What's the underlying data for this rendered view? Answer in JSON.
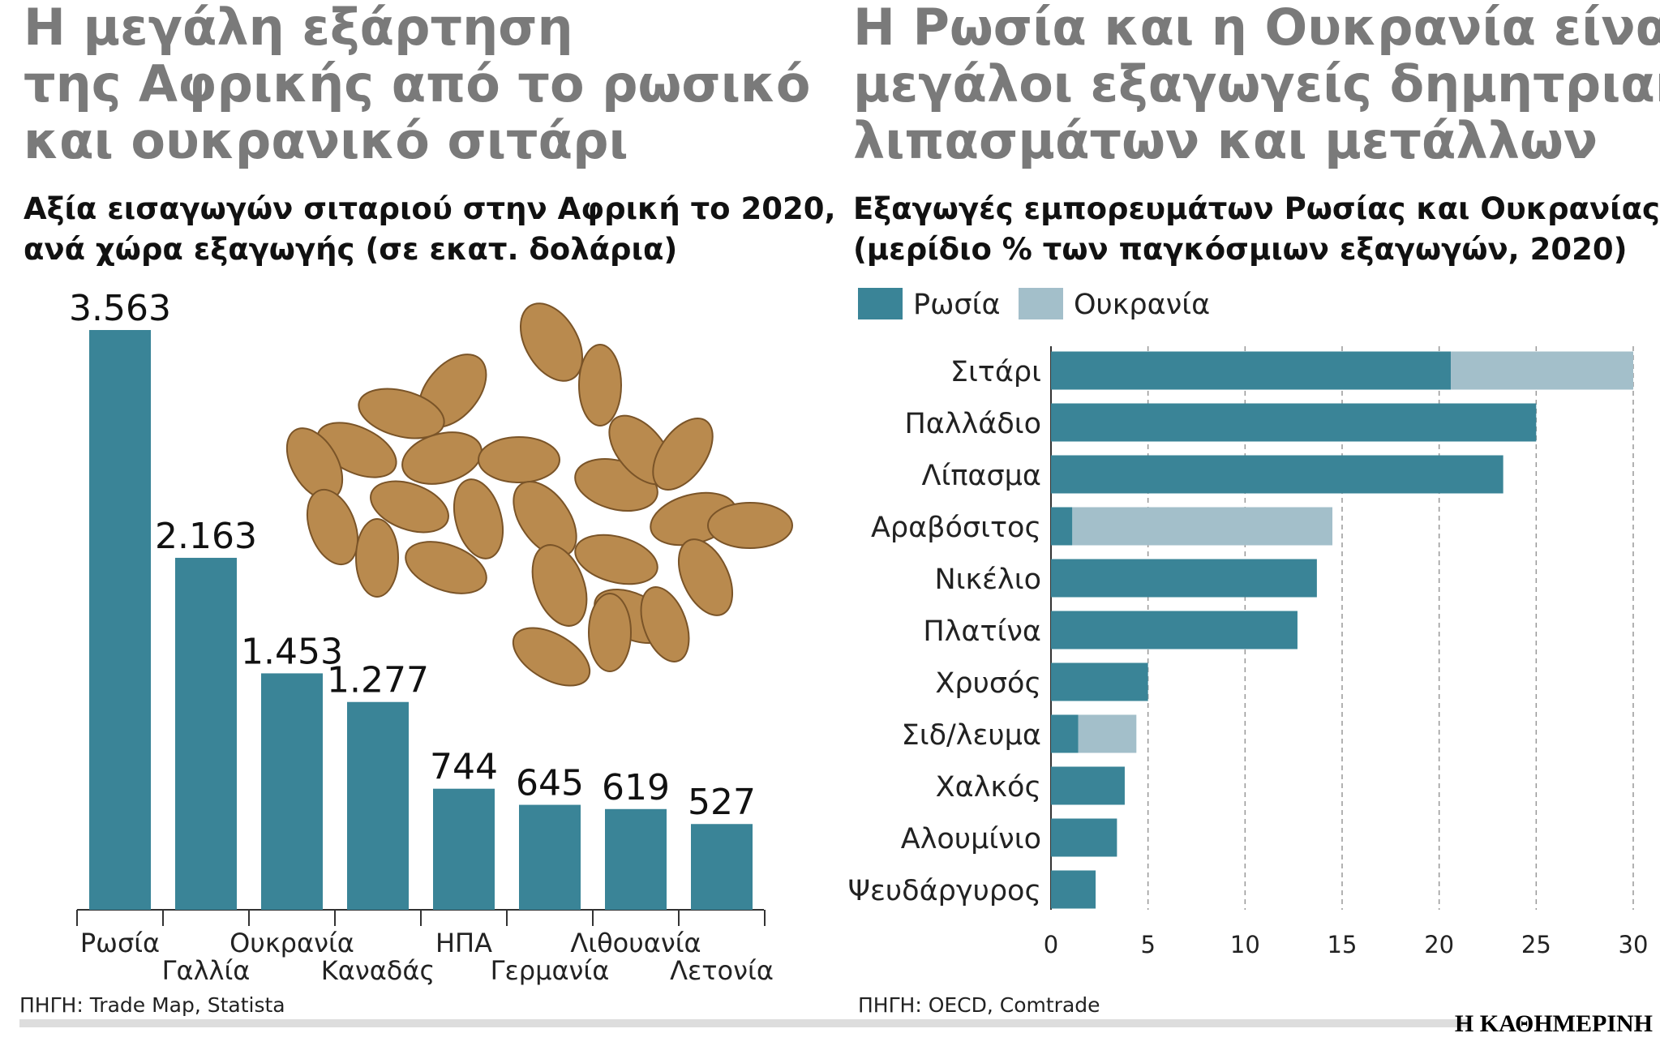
{
  "chart_data": [
    {
      "type": "bar",
      "title": [
        "Η μεγάλη εξάρτηση",
        "της Αφρικής από το ρωσικό",
        "και ουκρανικό σιτάρι"
      ],
      "subtitle": [
        "Αξία εισαγωγών σιταριού στην Αφρική το 2020,",
        "ανά χώρα εξαγωγής (σε εκατ. δολάρια)"
      ],
      "categories": [
        "Ρωσία",
        "Γαλλία",
        "Ουκρανία",
        "Καναδάς",
        "ΗΠΑ",
        "Γερμανία",
        "Λιθουανία",
        "Λετονία"
      ],
      "values": [
        3563,
        2163,
        1453,
        1277,
        744,
        645,
        619,
        527
      ],
      "value_labels": [
        "3.563",
        "2.163",
        "1.453",
        "1.277",
        "744",
        "645",
        "619",
        "527"
      ],
      "color": "#3a8497",
      "source": "ΠΗΓΗ: Trade Map, Statista"
    },
    {
      "type": "hbar-stacked",
      "title": [
        "Η Ρωσία και η Ουκρανία είναι",
        "μεγάλοι εξαγωγείς δημητριακών,",
        "λιπασμάτων και μετάλλων"
      ],
      "subtitle": [
        "Εξαγωγές εμπορευμάτων Ρωσίας και Ουκρανίας",
        "(μερίδιο % των παγκόσμιων εξαγωγών, 2020)"
      ],
      "categories": [
        "Σιτάρι",
        "Παλλάδιο",
        "Λίπασμα",
        "Αραβόσιτος",
        "Νικέλιο",
        "Πλατίνα",
        "Χρυσός",
        "Σιδ/λευμα",
        "Χαλκός",
        "Αλουμίνιο",
        "Ψευδάργυρος"
      ],
      "series": [
        {
          "name": "Ρωσία",
          "color": "#3a8497",
          "values": [
            20.6,
            25.0,
            23.3,
            1.1,
            13.7,
            12.7,
            5.0,
            1.4,
            3.8,
            3.4,
            2.3
          ]
        },
        {
          "name": "Ουκρανία",
          "color": "#a3bfca",
          "values": [
            9.4,
            0,
            0,
            13.4,
            0,
            0,
            0,
            3.0,
            0,
            0,
            0
          ]
        }
      ],
      "xlim": [
        0,
        30
      ],
      "xticks": [
        0,
        5,
        10,
        15,
        20,
        25,
        30
      ],
      "grid": true,
      "legend": "top-left",
      "source": "ΠΗΓΗ: OECD, Comtrade"
    }
  ],
  "logo": "Η ΚΑΘΗΜΕΡΙΝΗ"
}
